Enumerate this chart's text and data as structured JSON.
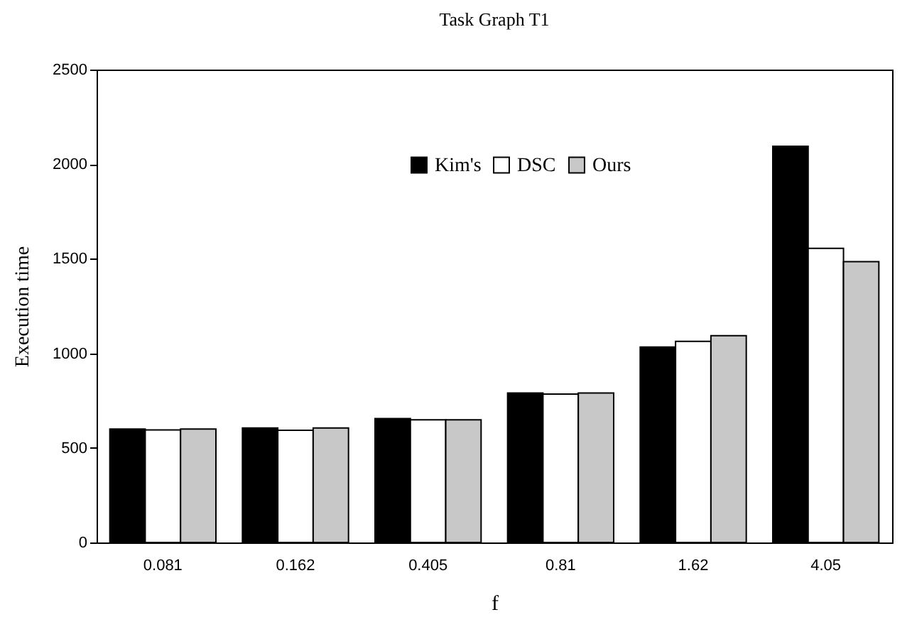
{
  "chart_data": {
    "type": "bar",
    "title": "Task Graph T1",
    "xlabel": "f",
    "ylabel": "Execution time",
    "categories": [
      "0.081",
      "0.162",
      "0.405",
      "0.81",
      "1.62",
      "4.05"
    ],
    "series": [
      {
        "name": "Kim's",
        "color": "#000000",
        "values": [
          600,
          605,
          655,
          790,
          1033,
          2095
        ]
      },
      {
        "name": "DSC",
        "color": "#ffffff",
        "values": [
          595,
          593,
          648,
          785,
          1063,
          1555
        ]
      },
      {
        "name": "Ours",
        "color": "#c8c8c8",
        "values": [
          600,
          605,
          648,
          790,
          1093,
          1485
        ]
      }
    ],
    "ylim": [
      0,
      2500
    ],
    "yticks": [
      0,
      500,
      1000,
      1500,
      2000,
      2500
    ],
    "grid": false,
    "legend": "top"
  }
}
